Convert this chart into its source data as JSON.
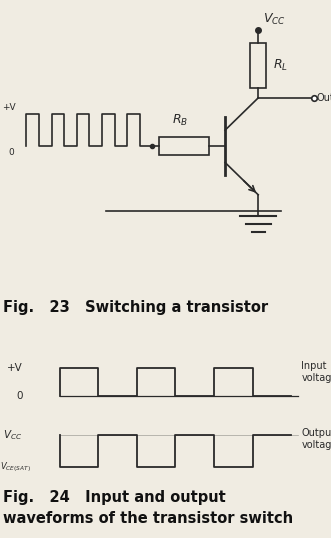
{
  "bg_color": "#f0ece2",
  "fig_width": 3.31,
  "fig_height": 5.38,
  "dpi": 100,
  "fig23_caption": "Fig.   23   Switching a transistor",
  "fig24_caption_line1": "Fig.   24   Input and output",
  "fig24_caption_line2": "waveforms of the transistor switch",
  "input_label_line1": "Input",
  "input_label_line2": "voltage",
  "output_label_line1": "Output",
  "output_label_line2": "voltage",
  "line_color": "#2a2a2a",
  "caption_color": "#111111",
  "text_color": "#222222"
}
